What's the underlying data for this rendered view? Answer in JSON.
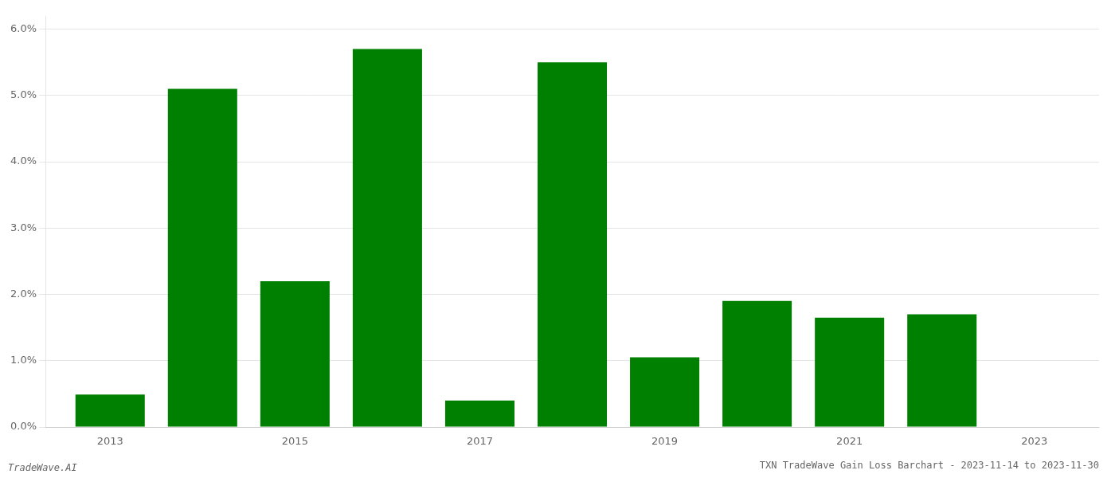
{
  "chart_data": {
    "type": "bar",
    "title": "TXN TradeWave Gain Loss Barchart - 2023-11-14 to 2023-11-30",
    "annotations": [
      "TradeWave.AI"
    ],
    "x": [
      2013,
      2014,
      2015,
      2016,
      2017,
      2018,
      2019,
      2020,
      2021,
      2022,
      2023
    ],
    "values": [
      0.0049,
      0.051,
      0.022,
      0.057,
      0.004,
      0.055,
      0.0105,
      0.019,
      0.0165,
      0.017,
      0.0
    ],
    "color": "#008000",
    "xlim": [
      2012.3,
      2023.7
    ],
    "xticks": [
      2013,
      2015,
      2017,
      2019,
      2021,
      2023
    ],
    "ylim": [
      0,
      0.062
    ],
    "yticks": [
      {
        "value": 0.0,
        "label": "0.0%"
      },
      {
        "value": 0.01,
        "label": "1.0%"
      },
      {
        "value": 0.02,
        "label": "2.0%"
      },
      {
        "value": 0.03,
        "label": "3.0%"
      },
      {
        "value": 0.04,
        "label": "4.0%"
      },
      {
        "value": 0.05,
        "label": "5.0%"
      },
      {
        "value": 0.06,
        "label": "6.0%"
      }
    ],
    "grid": true
  }
}
